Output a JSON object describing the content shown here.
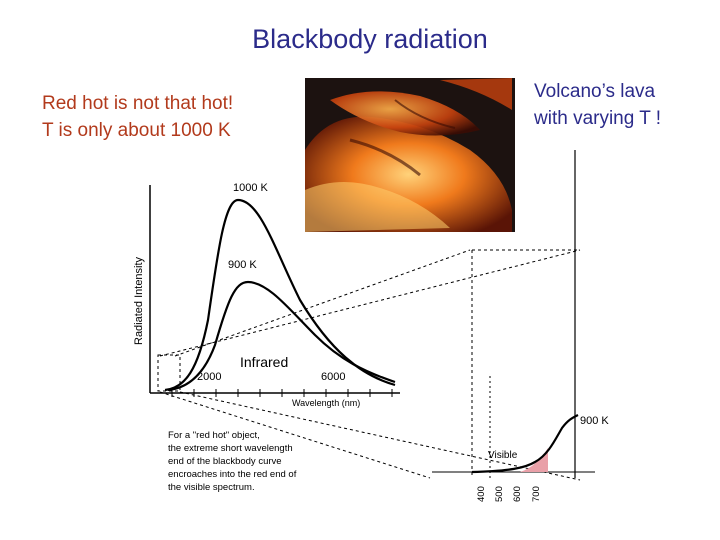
{
  "title": "Blackbody radiation",
  "left_note": [
    "Red hot is not that hot!",
    "T is only about 1000 K"
  ],
  "right_note": [
    "Volcano’s lava",
    "with varying T !"
  ],
  "left_chart": {
    "ylabel": "Radiated Intensity",
    "xlabel": "Wavelength (nm)",
    "x_ticks": [
      "2000",
      "6000"
    ],
    "curve_labels": [
      "1000 K",
      "900 K"
    ],
    "region_label": "Infrared"
  },
  "caption": [
    "For a \"red hot\" object,",
    "the extreme short wavelength",
    "end of the blackbody curve",
    "encroaches into the red end of",
    "the visible spectrum."
  ],
  "right_chart": {
    "curve_label": "900 K",
    "region_label": "Visible",
    "x_ticks": [
      "400",
      "500",
      "600",
      "700"
    ]
  },
  "colors": {
    "title": "#2b2b8a",
    "left_note": "#b23a1c",
    "visible_fill": "#e9a0a8"
  },
  "photo": {
    "description_icon": "lava-photo"
  }
}
